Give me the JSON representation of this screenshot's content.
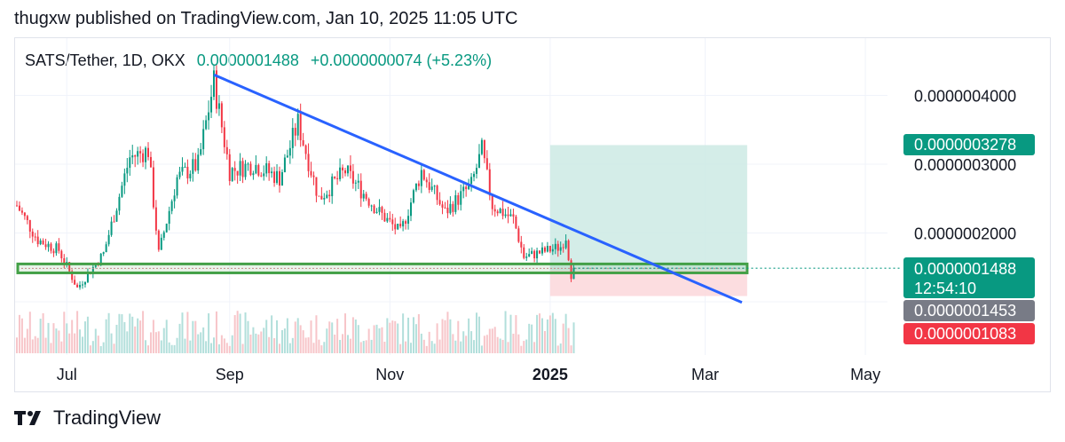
{
  "header": {
    "published": "thugxw published on TradingView.com, Jan 10, 2025 11:05 UTC"
  },
  "legend": {
    "symbol": "SATS/Tether, 1D, OKX",
    "last": "0.0000001488",
    "change": "+0.0000000074 (+5.23%)"
  },
  "footer": {
    "brand": "TradingView"
  },
  "colors": {
    "up": "#089981",
    "down": "#f23645",
    "trendline": "#2962ff",
    "zone": "#43a047",
    "tp_fill": "#cdeae4",
    "sl_fill": "#fbd7da",
    "grey_tag": "#787b86"
  },
  "price_tags": {
    "target": "0.0000003278",
    "current": "0.0000001488",
    "countdown": "12:54:10",
    "mid": "0.0000001453",
    "stop": "0.0000001083"
  },
  "chart_data": {
    "type": "candlestick",
    "title": "SATS/Tether, 1D, OKX",
    "y_axis": {
      "ticks": [
        "0.0000004000",
        "0.0000003000",
        "0.0000002000"
      ],
      "tick_values": [
        4e-07,
        3e-07,
        2e-07
      ],
      "range": [
        8.2e-08,
        4.4e-07
      ]
    },
    "x_axis": {
      "ticks": [
        "Jul",
        "Sep",
        "Nov",
        "2025",
        "Mar",
        "May"
      ]
    },
    "period": {
      "start": "2024-06-12",
      "end": "2025-01-10"
    },
    "trendline": {
      "from": {
        "date": "2024-08-26",
        "price": 4.3e-07
      },
      "to": {
        "date": "2025-03-15",
        "price": 9.9e-08
      }
    },
    "support_zone": {
      "low": 1.42e-07,
      "high": 1.55e-07
    },
    "long_position": {
      "entry": 1.453e-07,
      "target": 3.278e-07,
      "stop": 1.083e-07,
      "start": "2025-01-01",
      "end": "2025-03-17"
    },
    "current_price": 1.488e-07,
    "anchors": [
      {
        "date": "2024-06-12",
        "price": 2.4e-07
      },
      {
        "date": "2024-06-20",
        "price": 1.9e-07
      },
      {
        "date": "2024-06-28",
        "price": 1.75e-07
      },
      {
        "date": "2024-07-05",
        "price": 1.2e-07
      },
      {
        "date": "2024-07-15",
        "price": 1.7e-07
      },
      {
        "date": "2024-07-25",
        "price": 3.1e-07
      },
      {
        "date": "2024-08-01",
        "price": 3.2e-07
      },
      {
        "date": "2024-08-05",
        "price": 1.7e-07
      },
      {
        "date": "2024-08-12",
        "price": 2.8e-07
      },
      {
        "date": "2024-08-20",
        "price": 3e-07
      },
      {
        "date": "2024-08-26",
        "price": 4.2e-07
      },
      {
        "date": "2024-09-01",
        "price": 2.9e-07
      },
      {
        "date": "2024-09-10",
        "price": 3e-07
      },
      {
        "date": "2024-09-20",
        "price": 2.8e-07
      },
      {
        "date": "2024-09-27",
        "price": 3.6e-07
      },
      {
        "date": "2024-10-05",
        "price": 2.5e-07
      },
      {
        "date": "2024-10-15",
        "price": 2.9e-07
      },
      {
        "date": "2024-10-28",
        "price": 2.3e-07
      },
      {
        "date": "2024-11-05",
        "price": 2e-07
      },
      {
        "date": "2024-11-13",
        "price": 2.9e-07
      },
      {
        "date": "2024-11-22",
        "price": 2.3e-07
      },
      {
        "date": "2024-12-02",
        "price": 2.7e-07
      },
      {
        "date": "2024-12-06",
        "price": 3.2e-07
      },
      {
        "date": "2024-12-10",
        "price": 2.4e-07
      },
      {
        "date": "2024-12-18",
        "price": 2.2e-07
      },
      {
        "date": "2024-12-22",
        "price": 1.65e-07
      },
      {
        "date": "2025-01-05",
        "price": 1.8e-07
      },
      {
        "date": "2025-01-07",
        "price": 1.95e-07
      },
      {
        "date": "2025-01-09",
        "price": 1.4e-07
      },
      {
        "date": "2025-01-10",
        "price": 1.488e-07
      }
    ]
  }
}
